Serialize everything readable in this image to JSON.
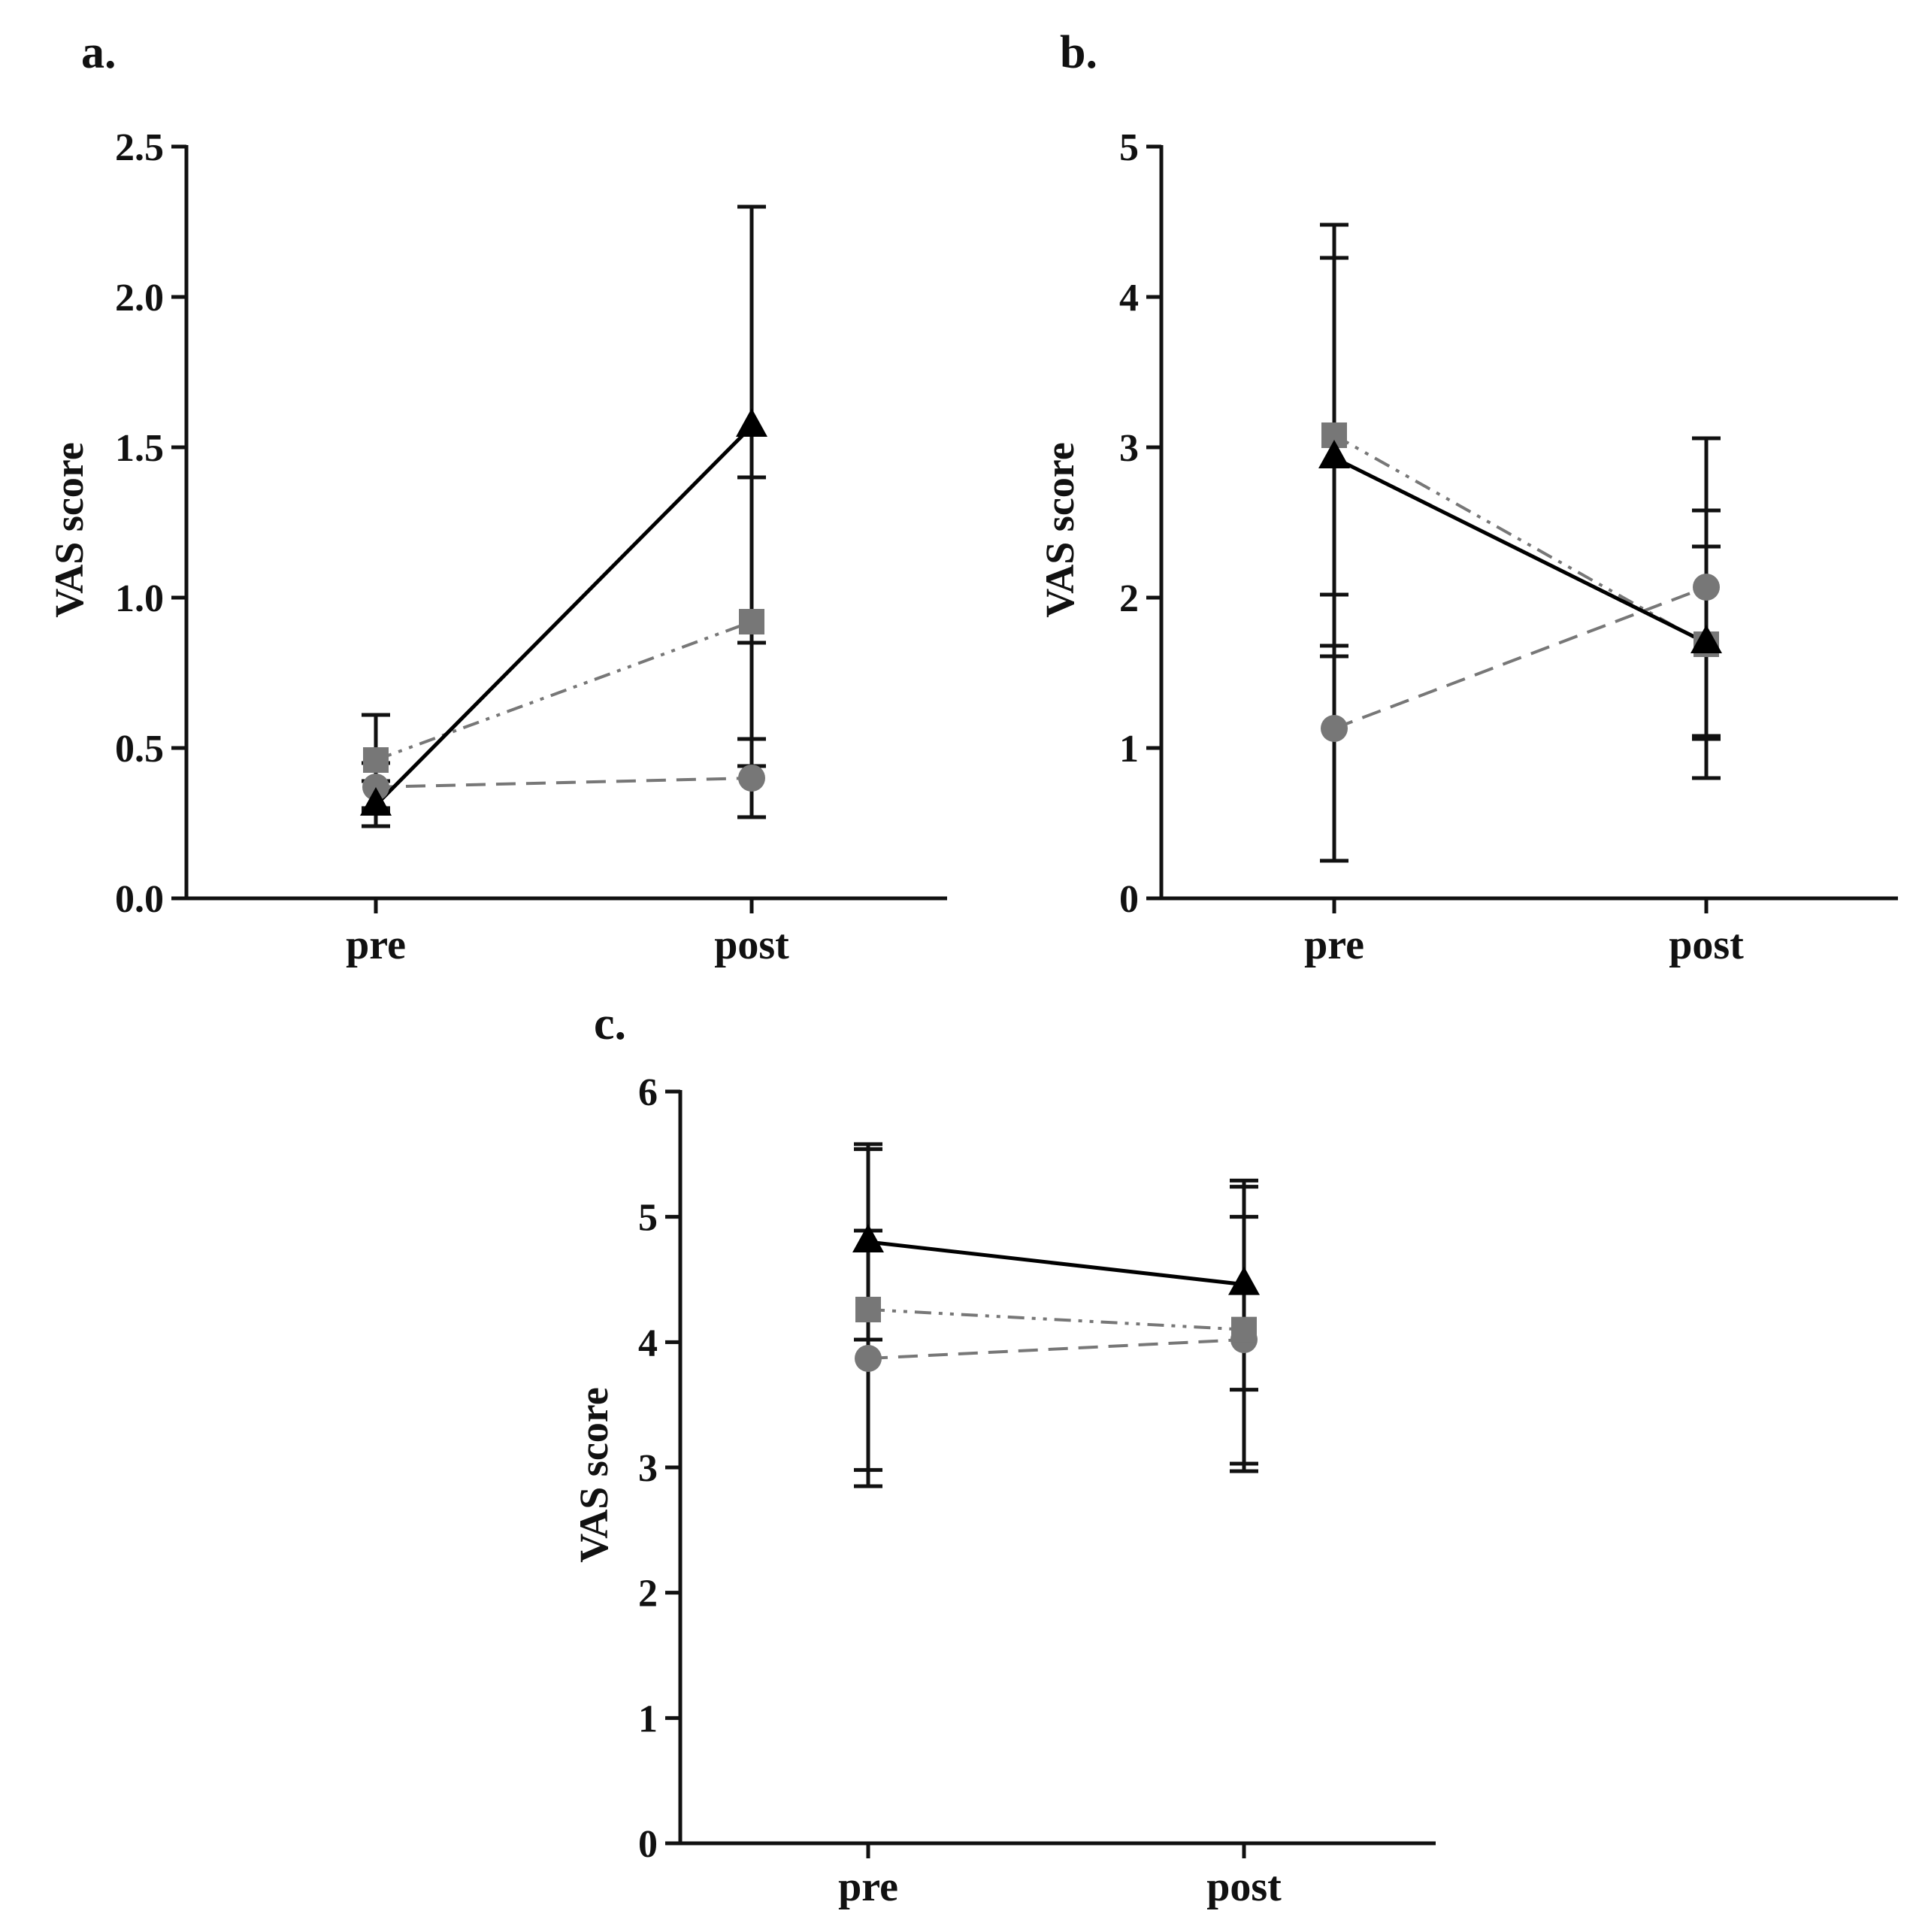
{
  "colors": {
    "axis": "#111111",
    "black_series": "#000000",
    "grey_series": "#777777",
    "errorbar": "#111111"
  },
  "chart_data": [
    {
      "panel": "a.",
      "type": "line",
      "categories": [
        "pre",
        "post"
      ],
      "ylabel": "VAS score",
      "ylim": [
        0,
        2.5
      ],
      "yticks": [
        0,
        0.5,
        1.0,
        1.5,
        2.0,
        2.5
      ],
      "ytick_labels": [
        "0.0",
        "0.5",
        "1.0",
        "1.5",
        "2.0",
        "2.5"
      ],
      "series": [
        {
          "marker": "circle",
          "line": "dashed",
          "color": "#777777",
          "values": [
            0.37,
            0.4
          ],
          "err_low": [
            0.29,
            0.27
          ],
          "err_high": [
            0.45,
            0.53
          ]
        },
        {
          "marker": "square",
          "line": "dash-dot-dot",
          "color": "#777777",
          "values": [
            0.46,
            0.92
          ],
          "err_low": [
            0.3,
            0.44
          ],
          "err_high": [
            0.61,
            1.4
          ]
        },
        {
          "marker": "triangle",
          "line": "solid",
          "color": "#000000",
          "values": [
            0.31,
            1.57
          ],
          "err_low": [
            0.24,
            0.85
          ],
          "err_high": [
            0.39,
            2.3
          ]
        }
      ]
    },
    {
      "panel": "b.",
      "type": "line",
      "categories": [
        "pre",
        "post"
      ],
      "ylabel": "VAS score",
      "ylim": [
        0,
        5
      ],
      "yticks": [
        0,
        1,
        2,
        3,
        4,
        5
      ],
      "ytick_labels": [
        "0",
        "1",
        "2",
        "3",
        "4",
        "5"
      ],
      "series": [
        {
          "marker": "circle",
          "line": "dashed",
          "color": "#777777",
          "values": [
            1.13,
            2.07
          ],
          "err_low": [
            0.25,
            1.08
          ],
          "err_high": [
            2.02,
            3.06
          ]
        },
        {
          "marker": "square",
          "line": "dash-dot-dot",
          "color": "#777777",
          "values": [
            3.08,
            1.69
          ],
          "err_low": [
            1.68,
            0.8
          ],
          "err_high": [
            4.48,
            2.58
          ]
        },
        {
          "marker": "triangle",
          "line": "solid",
          "color": "#000000",
          "values": [
            2.93,
            1.7
          ],
          "err_low": [
            1.61,
            1.06
          ],
          "err_high": [
            4.26,
            2.34
          ]
        }
      ]
    },
    {
      "panel": "c.",
      "type": "line",
      "categories": [
        "pre",
        "post"
      ],
      "ylabel": "VAS score",
      "ylim": [
        0,
        6
      ],
      "yticks": [
        0,
        1,
        2,
        3,
        4,
        5,
        6
      ],
      "ytick_labels": [
        "0",
        "1",
        "2",
        "3",
        "4",
        "5",
        "6"
      ],
      "series": [
        {
          "marker": "circle",
          "line": "dashed",
          "color": "#777777",
          "values": [
            3.87,
            4.02
          ],
          "err_low": [
            2.85,
            3.03
          ],
          "err_high": [
            4.89,
            5.0
          ]
        },
        {
          "marker": "square",
          "line": "dash-dot-dot",
          "color": "#777777",
          "values": [
            4.26,
            4.1
          ],
          "err_low": [
            2.98,
            2.97
          ],
          "err_high": [
            5.54,
            5.24
          ]
        },
        {
          "marker": "triangle",
          "line": "solid",
          "color": "#000000",
          "values": [
            4.8,
            4.46
          ],
          "err_low": [
            4.02,
            3.62
          ],
          "err_high": [
            5.58,
            5.29
          ]
        }
      ]
    }
  ]
}
